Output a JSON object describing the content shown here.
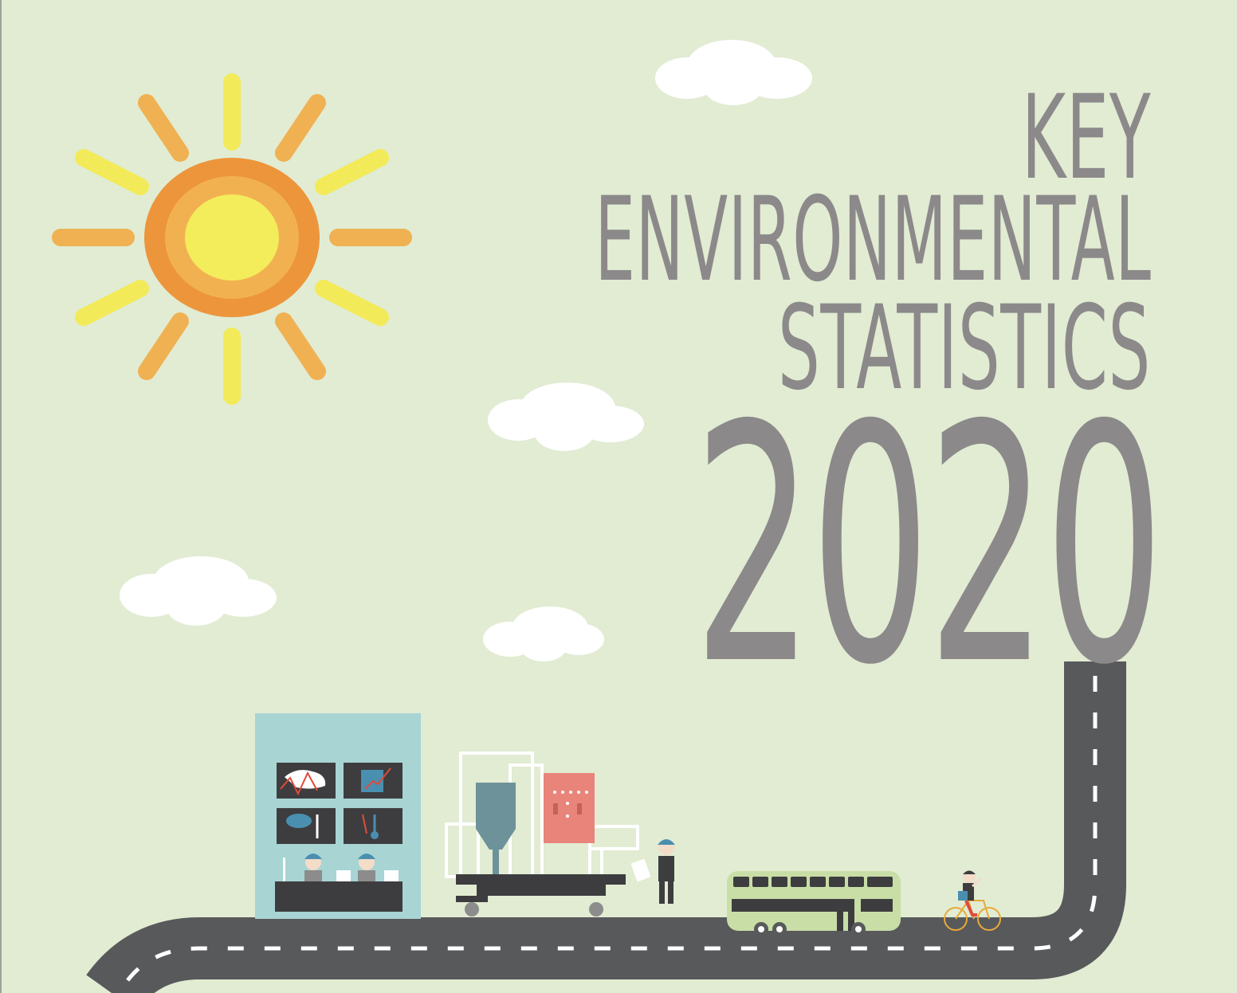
{
  "title": {
    "line1": "KEY",
    "line2": "ENVIRONMENTAL",
    "line3": "STATISTICS",
    "year": "2020"
  },
  "colors": {
    "background": "#e1ecd3",
    "title_text": "#8c898a",
    "sun_outer": "#ed953b",
    "sun_mid": "#f2b151",
    "sun_core": "#f3ec5b",
    "ray_yellow": "#f3ea5a",
    "ray_orange": "#f0b152",
    "road": "#58595b",
    "road_dash": "#ffffff",
    "building": "#a8d4d4",
    "bus": "#c9dea6",
    "panel": "#e8847a",
    "tank": "#6e9299"
  },
  "icons": [
    "sun-icon",
    "cloud-icon",
    "road-icon",
    "building-icon",
    "bus-icon",
    "bicycle-icon",
    "factory-icon",
    "person-icon"
  ]
}
